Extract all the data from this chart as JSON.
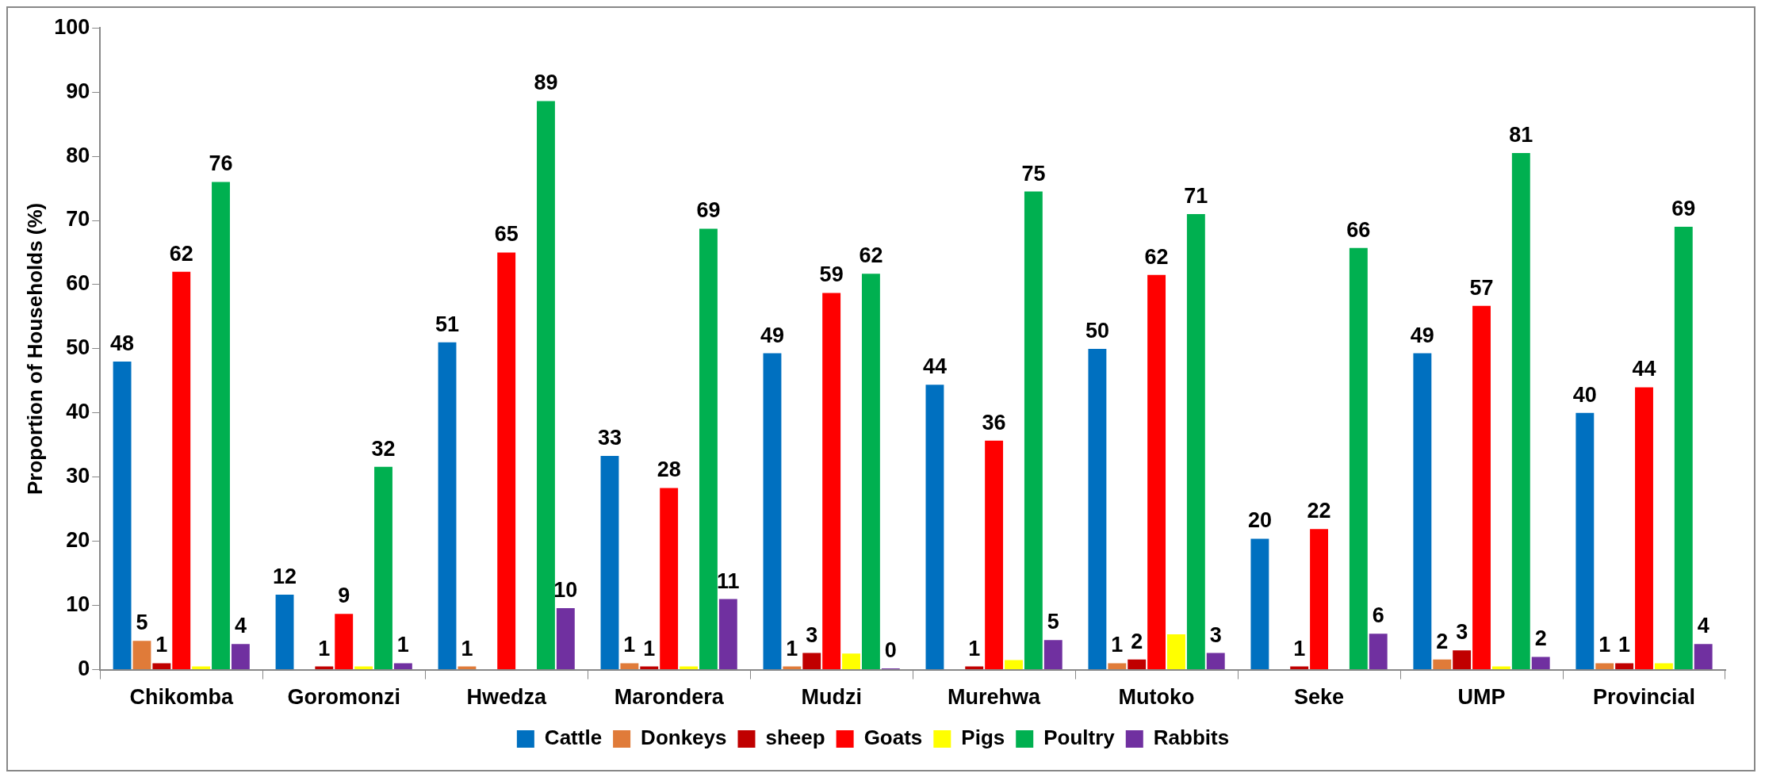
{
  "chart_data": {
    "type": "bar",
    "ylabel": "Proportion of Households (%)",
    "categories": [
      "Chikomba",
      "Goromonzi",
      "Hwedza",
      "Marondera",
      "Mudzi",
      "Murehwa",
      "Mutoko",
      "Seke",
      "UMP",
      "Provincial"
    ],
    "series": [
      {
        "name": "Cattle",
        "color": "#0070c0",
        "values": [
          48,
          11.7,
          51,
          33.3,
          49.3,
          44.4,
          50,
          20.4,
          49.3,
          40
        ],
        "value_labels": [
          "48",
          "12",
          "51",
          "33",
          "49",
          "44",
          "50",
          "20",
          "49",
          "40"
        ]
      },
      {
        "name": "Donkeys",
        "color": "#e07b39",
        "values": [
          4.5,
          0,
          0.5,
          1,
          0.5,
          0,
          1,
          0,
          1.6,
          1
        ],
        "value_labels": [
          "5",
          null,
          "1",
          "1",
          "1",
          null,
          "1",
          null,
          "2",
          "1"
        ]
      },
      {
        "name": "sheep",
        "color": "#c00000",
        "values": [
          1,
          0.5,
          0,
          0.5,
          2.6,
          0.5,
          1.6,
          0.5,
          3,
          1
        ],
        "value_labels": [
          "1",
          "1",
          null,
          "1",
          "3",
          "1",
          "2",
          "1",
          "3",
          "1"
        ]
      },
      {
        "name": "Goats",
        "color": "#ff0000",
        "values": [
          62,
          8.7,
          65,
          28.3,
          58.7,
          35.7,
          61.5,
          21.9,
          56.7,
          44
        ],
        "value_labels": [
          "62",
          "9",
          "65",
          "28",
          "59",
          "36",
          "62",
          "22",
          "57",
          "44"
        ]
      },
      {
        "name": "Pigs",
        "color": "#ffff00",
        "values": [
          0.5,
          0.5,
          0,
          0.5,
          2.5,
          1.5,
          5.5,
          0,
          0.5,
          1
        ],
        "value_labels": [
          null,
          null,
          null,
          null,
          null,
          null,
          null,
          null,
          null,
          null
        ]
      },
      {
        "name": "Poultry",
        "color": "#00b050",
        "values": [
          76,
          31.6,
          88.6,
          68.7,
          61.7,
          74.5,
          71,
          65.7,
          80.5,
          69
        ],
        "value_labels": [
          "76",
          "32",
          "89",
          "69",
          "62",
          "75",
          "71",
          "66",
          "81",
          "69"
        ]
      },
      {
        "name": "Rabbits",
        "color": "#7030a0",
        "values": [
          4,
          1,
          9.6,
          11,
          0.2,
          4.6,
          2.6,
          5.6,
          2,
          4
        ],
        "value_labels": [
          "4",
          "1",
          "10",
          "11",
          "0",
          "5",
          "3",
          "6",
          "2",
          "4"
        ]
      }
    ],
    "ylim": [
      0,
      100
    ],
    "yticks": [
      0,
      10,
      20,
      30,
      40,
      50,
      60,
      70,
      80,
      90,
      100
    ],
    "legend": "bottom"
  }
}
